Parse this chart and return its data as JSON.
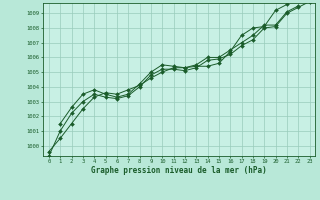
{
  "title": "Graphe pression niveau de la mer (hPa)",
  "bg_color": "#b8e8d8",
  "plot_bg_color": "#c8f0e4",
  "grid_color": "#99ccbb",
  "line_color": "#1a5c2a",
  "marker_color": "#1a5c2a",
  "ylim": [
    999.3,
    1009.7
  ],
  "xlim": [
    -0.5,
    23.5
  ],
  "yticks": [
    1000,
    1001,
    1002,
    1003,
    1004,
    1005,
    1006,
    1007,
    1008,
    1009
  ],
  "xticks": [
    0,
    1,
    2,
    3,
    4,
    5,
    6,
    7,
    8,
    9,
    10,
    11,
    12,
    13,
    14,
    15,
    16,
    17,
    18,
    19,
    20,
    21,
    22,
    23
  ],
  "series": [
    [
      999.6,
      1000.5,
      1001.5,
      1002.5,
      1003.3,
      1003.6,
      1003.5,
      1003.8,
      1004.1,
      1004.6,
      1005.0,
      1005.3,
      1005.3,
      1005.4,
      1005.4,
      1005.6,
      1006.4,
      1007.5,
      1008.0,
      1008.1,
      1009.2,
      1009.6,
      null,
      null
    ],
    [
      null,
      1001.5,
      1002.6,
      1003.5,
      1003.8,
      1003.5,
      1003.3,
      1003.5,
      1004.2,
      1005.0,
      1005.5,
      1005.4,
      1005.3,
      1005.5,
      1006.0,
      1006.0,
      1006.5,
      1007.0,
      1007.5,
      1008.2,
      1008.2,
      1009.1,
      1009.5,
      null
    ],
    [
      999.3,
      1001.0,
      1002.2,
      1003.0,
      1003.5,
      1003.3,
      1003.2,
      1003.4,
      1004.0,
      1004.8,
      1005.2,
      1005.2,
      1005.1,
      1005.3,
      1005.8,
      1005.9,
      1006.2,
      1006.8,
      1007.2,
      1008.0,
      1008.1,
      1009.0,
      1009.4,
      1009.8
    ]
  ]
}
